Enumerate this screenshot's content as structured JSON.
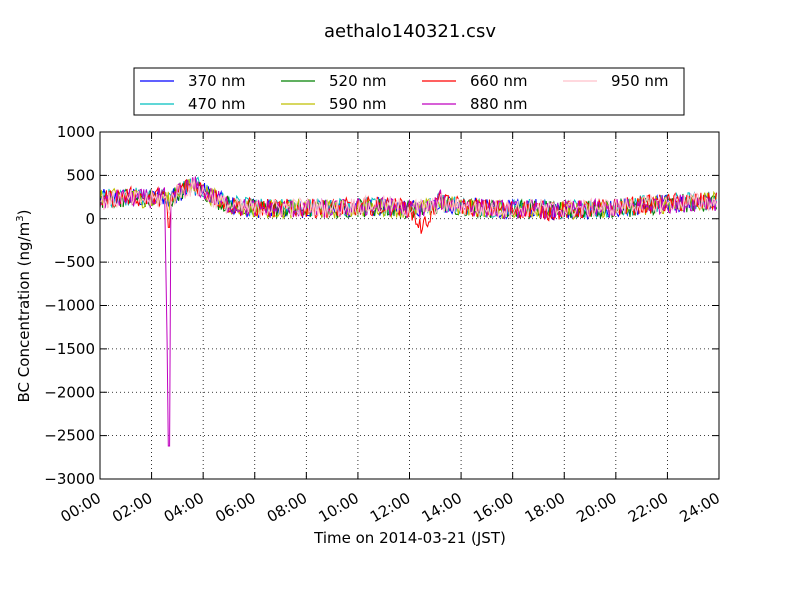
{
  "chart_data": {
    "type": "line",
    "title": "aethalo140321.csv",
    "xlabel": "Time on 2014-03-21 (JST)",
    "ylabel": "BC Concentration (ng/m³)",
    "ylabel_main": "BC Concentration (ng/m",
    "ylabel_sup": "3",
    "ylabel_close": ")",
    "xlim": [
      "2014-03-21 00:00",
      "2014-03-22 00:00"
    ],
    "ylim": [
      -3000,
      1000
    ],
    "grid": true,
    "grid_style": "dotted",
    "legend_position": "top",
    "legend_columns": 4,
    "x_ticks": [
      "00:00",
      "02:00",
      "04:00",
      "06:00",
      "08:00",
      "10:00",
      "12:00",
      "14:00",
      "16:00",
      "18:00",
      "20:00",
      "22:00",
      "24:00"
    ],
    "y_ticks": [
      "1000",
      "500",
      "0",
      "−500",
      "−1000",
      "−1500",
      "−2000",
      "−2500",
      "−3000"
    ],
    "x_sample_minutes": [
      0,
      60,
      120,
      150,
      160,
      165,
      180,
      220,
      240,
      270,
      300,
      330,
      360,
      420,
      480,
      540,
      600,
      660,
      720,
      750,
      780,
      790,
      800,
      840,
      900,
      960,
      1020,
      1050,
      1080,
      1140,
      1200,
      1260,
      1320,
      1380,
      1435
    ],
    "series": [
      {
        "name": "370 nm",
        "color": "#0000ff",
        "values": [
          230,
          250,
          230,
          260,
          200,
          220,
          300,
          380,
          320,
          230,
          160,
          130,
          120,
          110,
          120,
          110,
          130,
          140,
          110,
          120,
          140,
          220,
          170,
          150,
          120,
          110,
          120,
          90,
          100,
          110,
          120,
          150,
          170,
          190,
          200
        ]
      },
      {
        "name": "470 nm",
        "color": "#00bfbf",
        "values": [
          240,
          260,
          240,
          270,
          210,
          230,
          320,
          390,
          330,
          240,
          170,
          140,
          130,
          120,
          130,
          120,
          140,
          150,
          120,
          130,
          150,
          230,
          180,
          160,
          130,
          120,
          130,
          100,
          110,
          120,
          130,
          160,
          180,
          200,
          210
        ]
      },
      {
        "name": "520 nm",
        "color": "#008000",
        "values": [
          220,
          245,
          225,
          255,
          195,
          215,
          310,
          380,
          315,
          225,
          155,
          125,
          115,
          105,
          115,
          105,
          125,
          135,
          105,
          115,
          135,
          215,
          165,
          145,
          115,
          105,
          115,
          85,
          95,
          105,
          115,
          145,
          165,
          185,
          195
        ]
      },
      {
        "name": "590 nm",
        "color": "#bfbf00",
        "values": [
          225,
          248,
          228,
          258,
          198,
          218,
          312,
          382,
          318,
          228,
          158,
          128,
          118,
          108,
          118,
          108,
          128,
          138,
          108,
          118,
          138,
          218,
          168,
          148,
          118,
          108,
          118,
          88,
          98,
          108,
          118,
          148,
          168,
          188,
          198
        ]
      },
      {
        "name": "660 nm",
        "color": "#ff0000",
        "values": [
          220,
          260,
          240,
          270,
          -100,
          200,
          330,
          400,
          330,
          240,
          170,
          140,
          130,
          120,
          120,
          120,
          140,
          150,
          120,
          -120,
          160,
          230,
          180,
          150,
          120,
          110,
          110,
          80,
          100,
          110,
          130,
          160,
          180,
          200,
          190
        ]
      },
      {
        "name": "880 nm",
        "color": "#bf00bf",
        "values": [
          210,
          240,
          230,
          260,
          -2620,
          180,
          310,
          390,
          320,
          230,
          160,
          130,
          120,
          110,
          120,
          110,
          130,
          140,
          110,
          120,
          150,
          240,
          170,
          150,
          120,
          100,
          120,
          90,
          100,
          110,
          120,
          150,
          170,
          190,
          200
        ]
      },
      {
        "name": "950 nm",
        "color": "#ffc0cb",
        "values": [
          200,
          230,
          220,
          240,
          100,
          210,
          300,
          370,
          310,
          220,
          150,
          120,
          110,
          130,
          140,
          120,
          150,
          160,
          120,
          130,
          140,
          210,
          160,
          140,
          110,
          120,
          130,
          100,
          110,
          120,
          140,
          160,
          180,
          200,
          180
        ]
      }
    ]
  }
}
